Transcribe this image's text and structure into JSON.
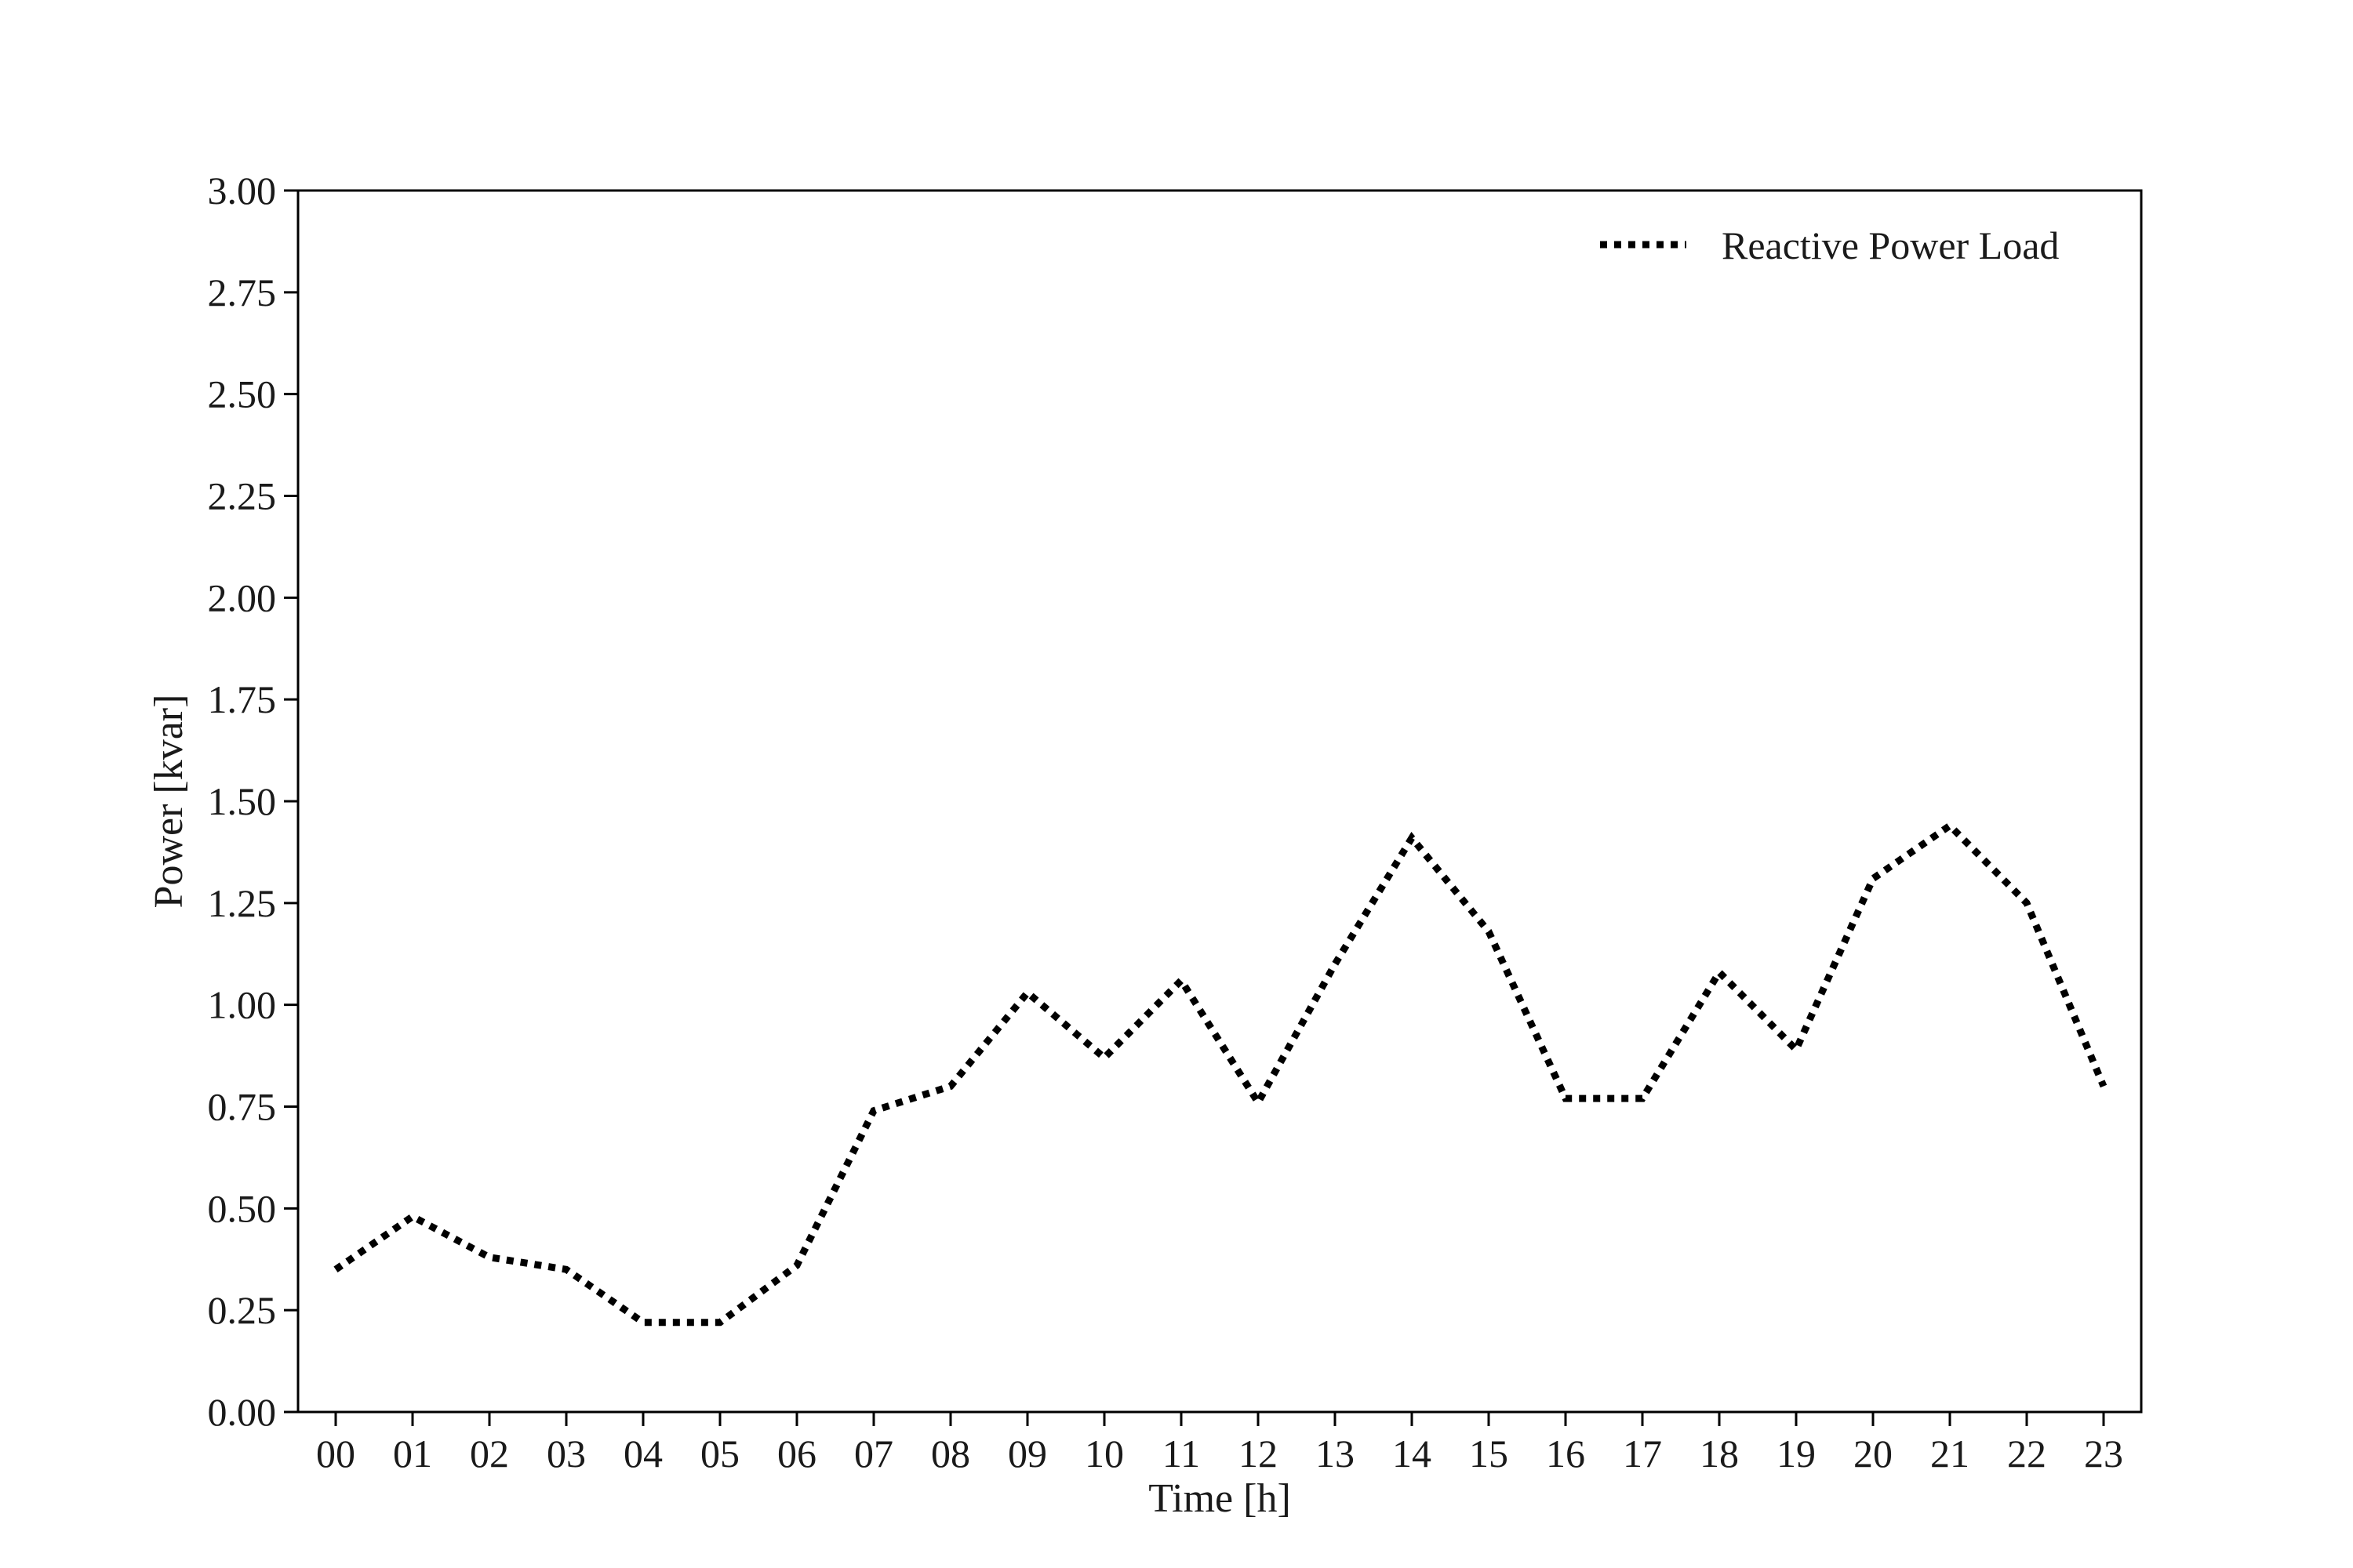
{
  "chart_data": {
    "type": "line",
    "title": "",
    "xlabel": "Time [h]",
    "ylabel": "Power [kvar]",
    "categories": [
      "00",
      "01",
      "02",
      "03",
      "04",
      "05",
      "06",
      "07",
      "08",
      "09",
      "10",
      "11",
      "12",
      "13",
      "14",
      "15",
      "16",
      "17",
      "18",
      "19",
      "20",
      "21",
      "22",
      "23"
    ],
    "ylim": [
      0,
      3.0
    ],
    "yticks": [
      "0.00",
      "0.25",
      "0.50",
      "0.75",
      "1.00",
      "1.25",
      "1.50",
      "1.75",
      "2.00",
      "2.25",
      "2.50",
      "2.75",
      "3.00"
    ],
    "series": [
      {
        "name": "Reactive Power Load",
        "style": "dotted",
        "color": "#000000",
        "values": [
          0.35,
          0.48,
          0.38,
          0.35,
          0.22,
          0.22,
          0.36,
          0.74,
          0.8,
          1.03,
          0.87,
          1.06,
          0.76,
          1.1,
          1.41,
          1.18,
          0.77,
          0.77,
          1.08,
          0.89,
          1.31,
          1.44,
          1.25,
          0.8
        ]
      }
    ],
    "grid": false,
    "legend": "top-right"
  }
}
